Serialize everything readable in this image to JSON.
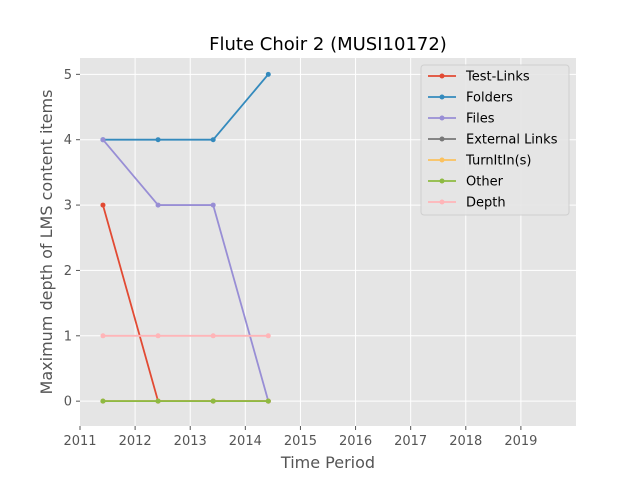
{
  "chart_data": {
    "type": "line",
    "title": "Flute Choir 2 (MUSI10172)",
    "xlabel": "Time Period",
    "ylabel": "Maximum depth of LMS content items",
    "xlim": [
      2011,
      2020
    ],
    "ylim": [
      -0.38,
      5.25
    ],
    "xticks": [
      "2011",
      "2012",
      "2013",
      "2014",
      "2015",
      "2016",
      "2017",
      "2018",
      "2019"
    ],
    "yticks": [
      "0",
      "1",
      "2",
      "3",
      "4",
      "5"
    ],
    "grid": true,
    "legend_position": "top-right",
    "background": "#e5e5e5",
    "x": [
      "2011-06",
      "2012-06",
      "2013-06",
      "2014-06"
    ],
    "series": [
      {
        "name": "Test-Links",
        "color": "#E24A33",
        "values": [
          3,
          0,
          0,
          0
        ]
      },
      {
        "name": "Folders",
        "color": "#348ABD",
        "values": [
          4,
          4,
          4,
          5
        ]
      },
      {
        "name": "Files",
        "color": "#988ED5",
        "values": [
          4,
          3,
          3,
          0
        ]
      },
      {
        "name": "External Links",
        "color": "#777777",
        "values": [
          0,
          0,
          0,
          0
        ]
      },
      {
        "name": "TurnItIn(s)",
        "color": "#FBC15E",
        "values": [
          0,
          0,
          0,
          0
        ]
      },
      {
        "name": "Other",
        "color": "#8EBA42",
        "values": [
          0,
          0,
          0,
          0
        ]
      },
      {
        "name": "Depth",
        "color": "#FFB5B8",
        "values": [
          1,
          1,
          1,
          1
        ]
      }
    ]
  }
}
